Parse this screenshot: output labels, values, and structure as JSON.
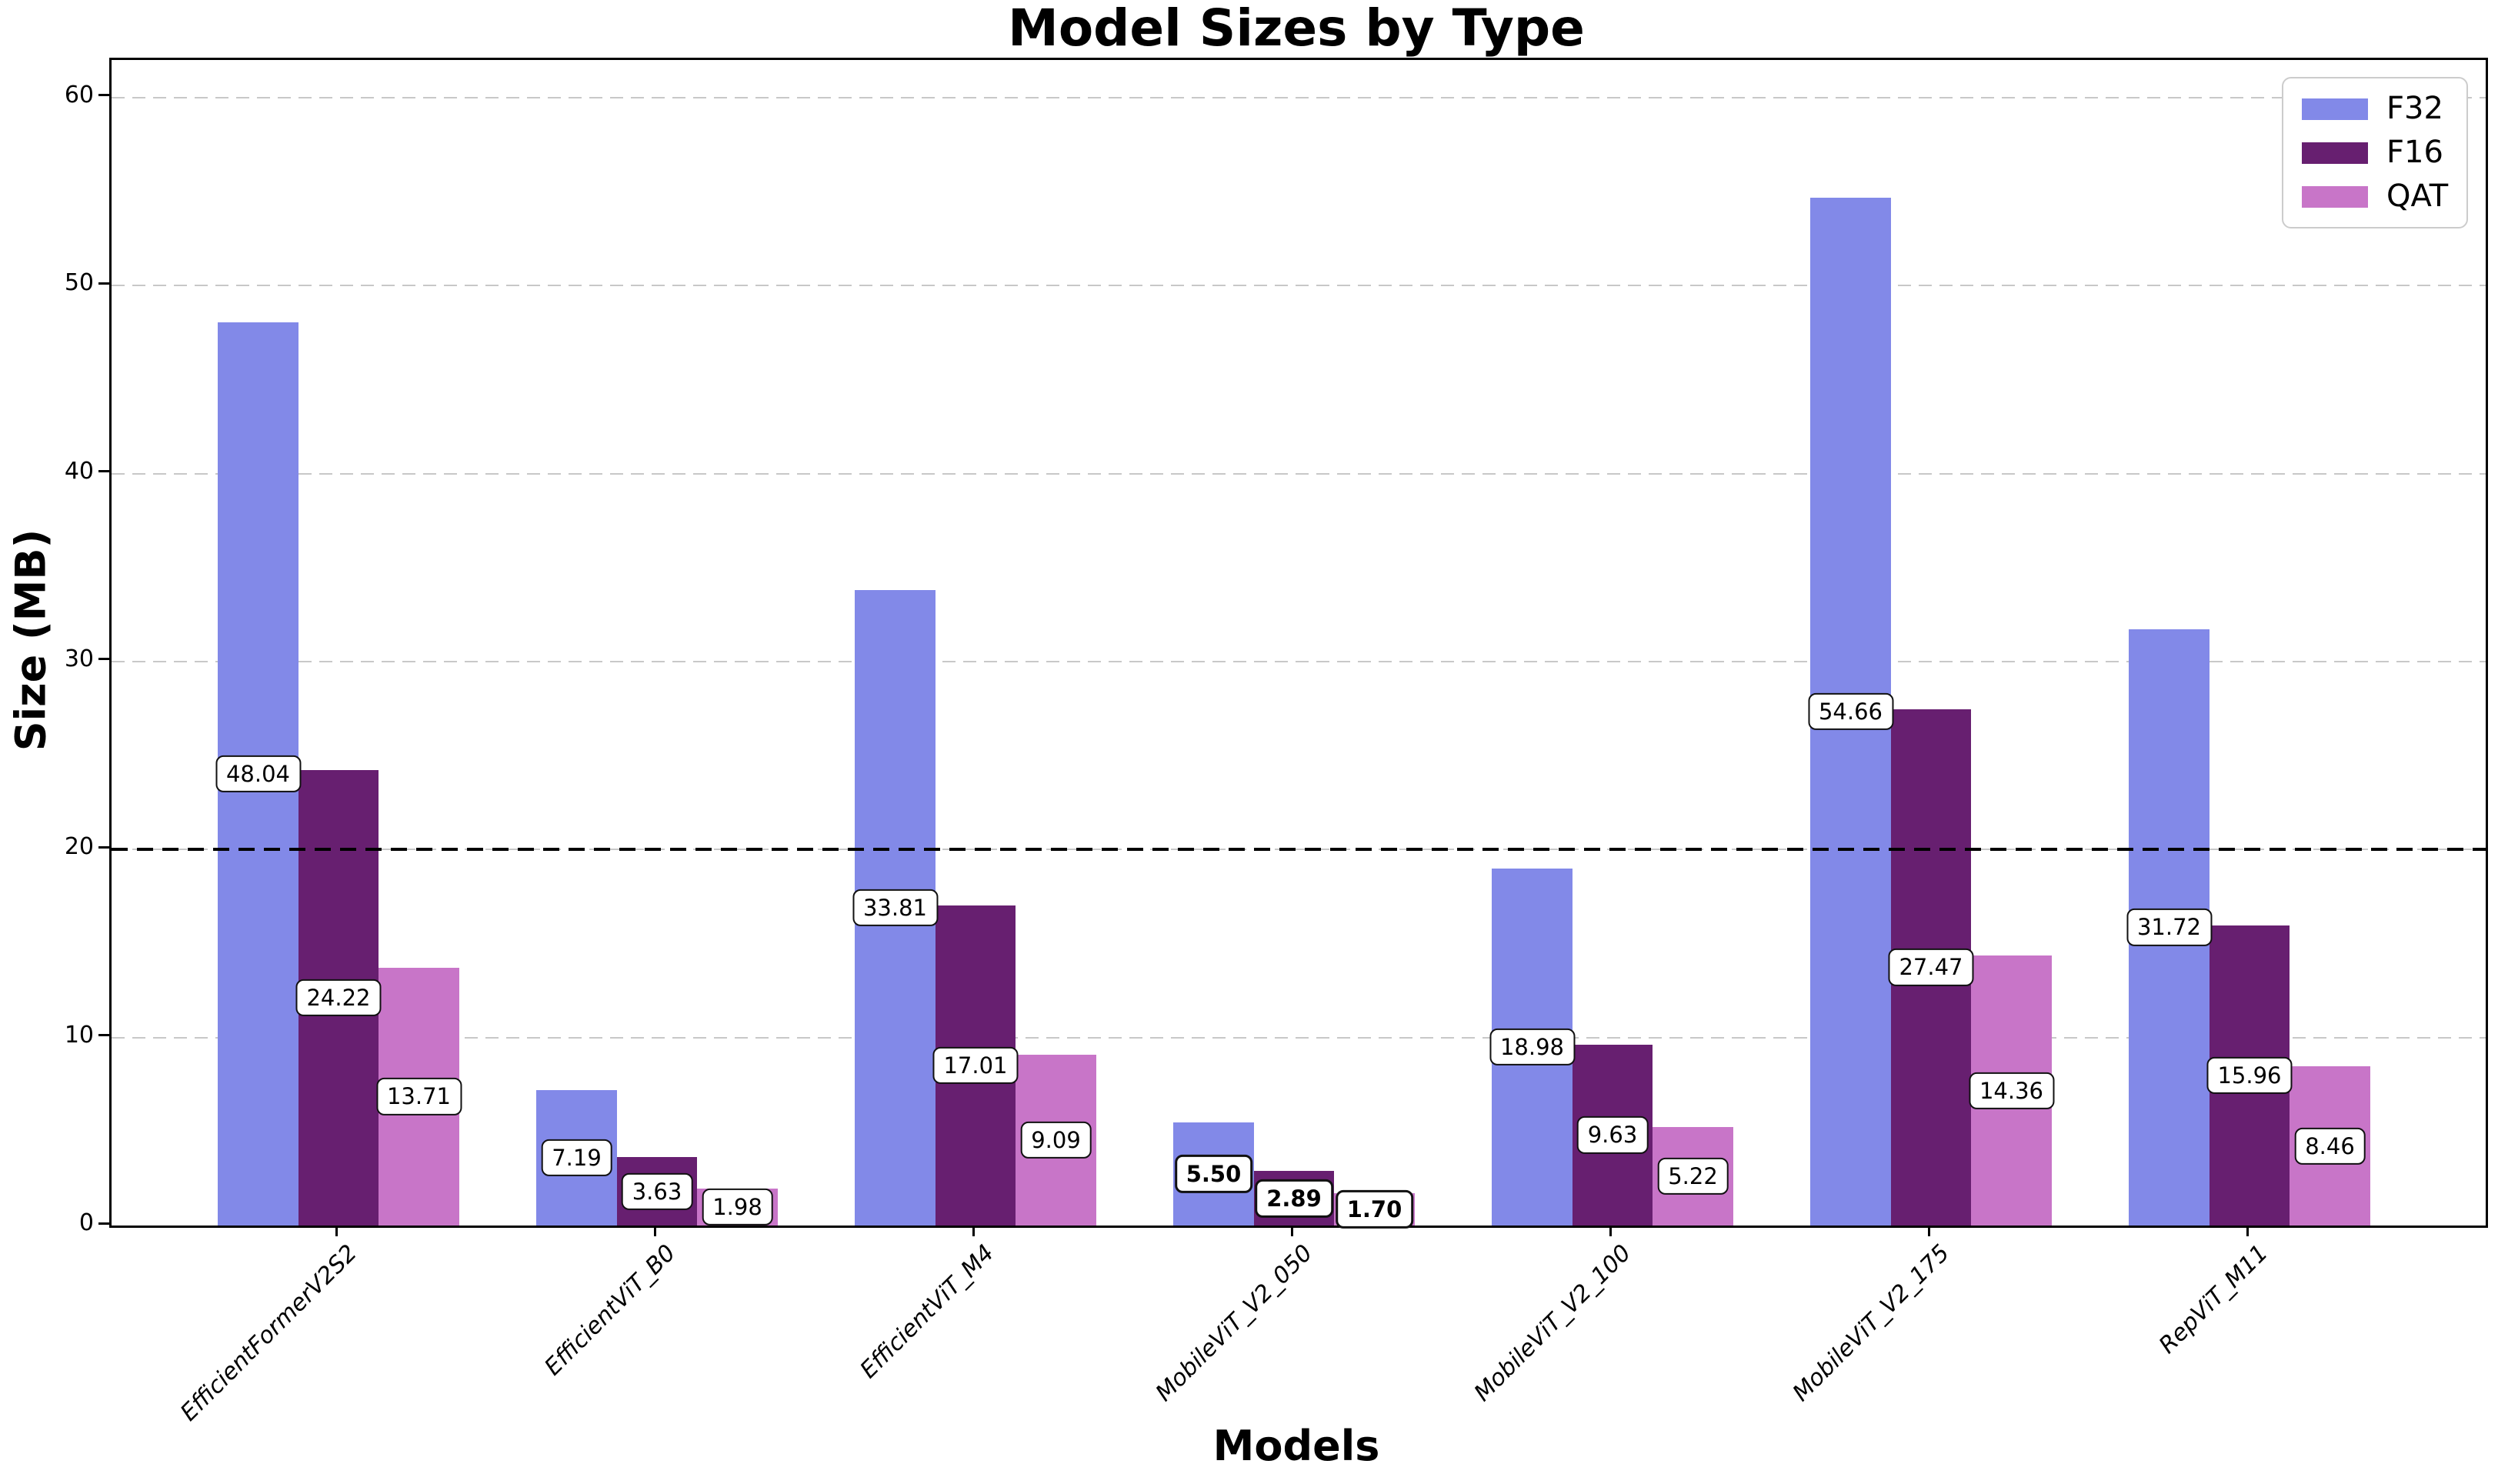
{
  "figure": {
    "title": "Model Sizes by Type",
    "xlabel": "Models",
    "ylabel": "Size (MB)"
  },
  "legend": {
    "position": "upper right",
    "items": [
      {
        "label": "F32",
        "color": "#8289E8"
      },
      {
        "label": "F16",
        "color": "#671F70"
      },
      {
        "label": "QAT",
        "color": "#C875C8"
      }
    ]
  },
  "chart_data": {
    "type": "bar",
    "title": "Model Sizes by Type",
    "xlabel": "Models",
    "ylabel": "Size (MB)",
    "categories": [
      "EfficientFormerV2S2",
      "EfficientViT_B0",
      "EfficientViT_M4",
      "MobileViT_V2_050",
      "MobileViT_V2_100",
      "MobileViT_V2_175",
      "RepViT_M11"
    ],
    "series": [
      {
        "name": "F32",
        "color": "#8289E8",
        "values": [
          48.04,
          7.19,
          33.81,
          5.5,
          18.98,
          54.66,
          31.72
        ]
      },
      {
        "name": "F16",
        "color": "#671F70",
        "values": [
          24.22,
          3.63,
          17.01,
          2.89,
          9.63,
          27.47,
          15.96
        ]
      },
      {
        "name": "QAT",
        "color": "#C875C8",
        "values": [
          13.71,
          1.98,
          9.09,
          1.7,
          5.22,
          14.36,
          8.46
        ]
      }
    ],
    "ylim": [
      0,
      62
    ],
    "yticks": [
      0,
      10,
      20,
      30,
      40,
      50,
      60
    ],
    "grid": "horizontal dashed gray lines at y ticks",
    "grid_color": "#c8c8c8",
    "threshold_line": {
      "y": 20,
      "color": "#000000",
      "style": "dashed"
    },
    "value_labels": {
      "decimals": 2,
      "box": "white rounded box with black border at half bar height"
    },
    "bold_label_category": "MobileViT_V2_050",
    "xtick_style": "italic, rotated 45deg",
    "legend_position": "upper right"
  }
}
